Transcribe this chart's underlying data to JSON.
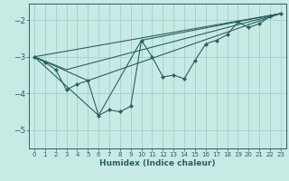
{
  "xlabel": "Humidex (Indice chaleur)",
  "xlim": [
    -0.5,
    23.5
  ],
  "ylim": [
    -5.5,
    -1.55
  ],
  "yticks": [
    -5,
    -4,
    -3,
    -2
  ],
  "xticks": [
    0,
    1,
    2,
    3,
    4,
    5,
    6,
    7,
    8,
    9,
    10,
    11,
    12,
    13,
    14,
    15,
    16,
    17,
    18,
    19,
    20,
    21,
    22,
    23
  ],
  "bg_color": "#c8eae4",
  "grid_color": "#a0d0cc",
  "line_color": "#2a6060",
  "main_line": {
    "x": [
      0,
      1,
      2,
      3,
      4,
      5,
      6,
      7,
      8,
      9,
      10,
      11,
      12,
      13,
      14,
      15,
      16,
      17,
      18,
      19,
      20,
      21,
      22,
      23
    ],
    "y": [
      -3.0,
      -3.15,
      -3.35,
      -3.9,
      -3.75,
      -3.65,
      -4.6,
      -4.45,
      -4.5,
      -4.35,
      -2.55,
      -3.0,
      -3.55,
      -3.5,
      -3.6,
      -3.1,
      -2.65,
      -2.55,
      -2.4,
      -2.05,
      -2.2,
      -2.1,
      -1.9,
      -1.82
    ]
  },
  "trend_lines": [
    {
      "x": [
        0,
        23
      ],
      "y": [
        -3.0,
        -1.82
      ]
    },
    {
      "x": [
        0,
        3,
        23
      ],
      "y": [
        -3.0,
        -3.35,
        -1.82
      ]
    },
    {
      "x": [
        0,
        5,
        23
      ],
      "y": [
        -3.0,
        -3.65,
        -1.82
      ]
    },
    {
      "x": [
        0,
        6,
        10,
        23
      ],
      "y": [
        -3.0,
        -4.6,
        -2.55,
        -1.82
      ]
    }
  ]
}
